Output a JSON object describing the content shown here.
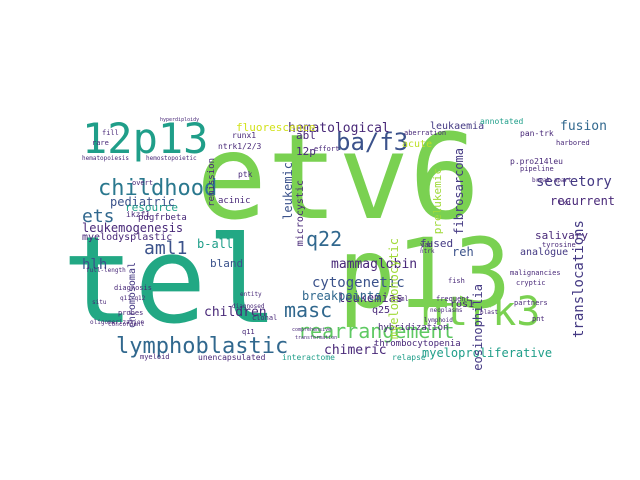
{
  "palette": {
    "green_bright": "#7ad151",
    "green": "#5ec962",
    "teal_green": "#22a884",
    "teal": "#1f9e89",
    "blue_teal": "#2a788e",
    "blue": "#31688e",
    "indigo": "#3b528b",
    "purple": "#443983",
    "dark_purple": "#482878",
    "deep_purple": "#440154",
    "yellow_green": "#bddf26",
    "yellow": "#d2e21b",
    "light_green": "#a0da39"
  },
  "words": [
    {
      "text": "etv6"
    },
    {
      "text": "tel"
    },
    {
      "text": "p13"
    },
    {
      "text": "12p13"
    },
    {
      "text": "ntrk3"
    },
    {
      "text": "childhood"
    },
    {
      "text": "lymphoblastic"
    },
    {
      "text": "rearrangement"
    },
    {
      "text": "ba/f3"
    },
    {
      "text": "ets"
    },
    {
      "text": "aml1"
    },
    {
      "text": "masc"
    },
    {
      "text": "q22"
    },
    {
      "text": "hematological"
    },
    {
      "text": "leukaemia"
    },
    {
      "text": "fusion"
    },
    {
      "text": "secretory"
    },
    {
      "text": "recurrent"
    },
    {
      "text": "fibrosarcoma"
    },
    {
      "text": "translocations"
    },
    {
      "text": "mammaglobin"
    },
    {
      "text": "cytogenetic"
    },
    {
      "text": "leukemias"
    },
    {
      "text": "breakpoints"
    },
    {
      "text": "children"
    },
    {
      "text": "chimeric"
    },
    {
      "text": "myeloproliferative"
    },
    {
      "text": "pediatric"
    },
    {
      "text": "leukemogenesis"
    },
    {
      "text": "resource"
    },
    {
      "text": "hlh"
    },
    {
      "text": "eosinophilia"
    },
    {
      "text": "salivary"
    },
    {
      "text": "analogue"
    },
    {
      "text": "myelodysplastic"
    },
    {
      "text": "chromosomal"
    },
    {
      "text": "fluorescence"
    },
    {
      "text": "reh"
    },
    {
      "text": "abl"
    },
    {
      "text": "12p"
    },
    {
      "text": "fused"
    },
    {
      "text": "b-all"
    },
    {
      "text": "bland"
    },
    {
      "text": "q25"
    },
    {
      "text": "ros1"
    },
    {
      "text": "hybridization"
    },
    {
      "text": "acute"
    },
    {
      "text": "leukemic"
    },
    {
      "text": "microcystic"
    },
    {
      "text": "prelukemic"
    },
    {
      "text": "remission"
    },
    {
      "text": "thrombocytopenia"
    },
    {
      "text": "unencapsulated"
    },
    {
      "text": "interactome"
    },
    {
      "text": "relapse"
    },
    {
      "text": "pdgfrbeta"
    },
    {
      "text": "p.pro214leu"
    },
    {
      "text": "break-apart"
    },
    {
      "text": "annotated"
    },
    {
      "text": "pan-trk"
    },
    {
      "text": "ikzf1"
    },
    {
      "text": "acinic"
    },
    {
      "text": "ptk"
    },
    {
      "text": "runx1"
    },
    {
      "text": "ntrk1/2/3"
    },
    {
      "text": "diagnosis"
    },
    {
      "text": "probes"
    },
    {
      "text": "q11-q12"
    },
    {
      "text": "overt"
    },
    {
      "text": "hematopoiesis"
    },
    {
      "text": "hemostopoietic"
    },
    {
      "text": "aml"
    },
    {
      "text": "yan"
    },
    {
      "text": "ntrk"
    },
    {
      "text": "malignancies"
    },
    {
      "text": "cryptic"
    },
    {
      "text": "fish"
    },
    {
      "text": "partners"
    },
    {
      "text": "pnt"
    },
    {
      "text": "tyrosine"
    },
    {
      "text": "clonal"
    },
    {
      "text": "q11"
    },
    {
      "text": "myeloid"
    },
    {
      "text": "aberration"
    },
    {
      "text": "harbored"
    },
    {
      "text": "frequent"
    },
    {
      "text": "neoplasms"
    },
    {
      "text": "blast"
    },
    {
      "text": "entity"
    },
    {
      "text": "diagnosed"
    },
    {
      "text": "lymphoid"
    },
    {
      "text": "pipeline"
    },
    {
      "text": "effort"
    },
    {
      "text": "tkd"
    },
    {
      "text": "fill"
    },
    {
      "text": "rare"
    },
    {
      "text": "situ"
    },
    {
      "text": "oligomerization"
    },
    {
      "text": "concordant"
    },
    {
      "text": "full-length"
    },
    {
      "text": "hyperdiploidy"
    },
    {
      "text": "transformation"
    },
    {
      "text": "comprehensive"
    },
    {
      "text": "myelomonocytic"
    }
  ]
}
